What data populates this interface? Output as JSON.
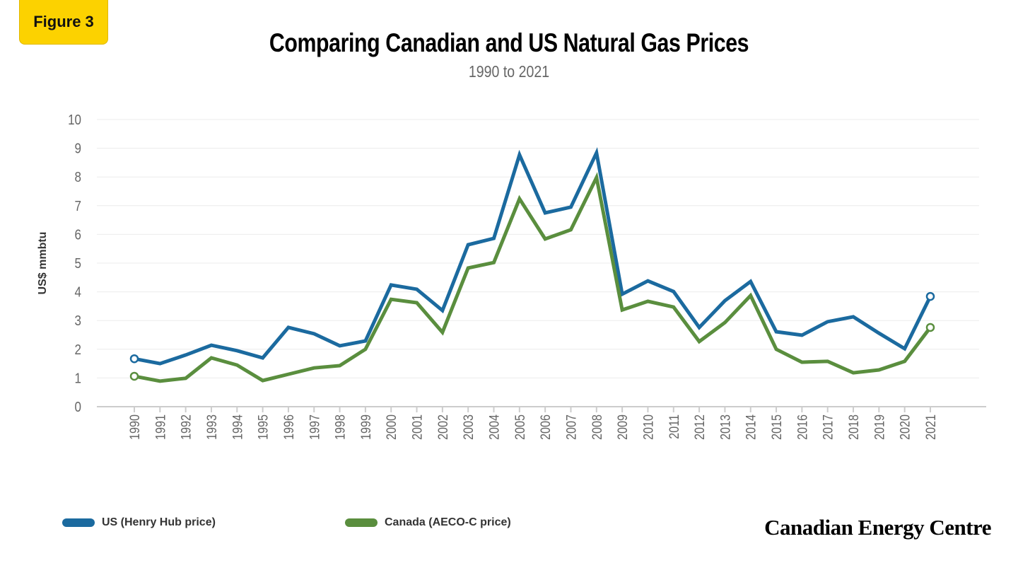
{
  "badge": "Figure 3",
  "logo": "Canadian Energy Centre",
  "chart_data": {
    "type": "line",
    "title": "Comparing Canadian and US Natural Gas Prices",
    "subtitle": "1990 to 2021",
    "xlabel": "",
    "ylabel": "US$ mmbtu",
    "ylim": [
      0,
      10
    ],
    "yticks": [
      "0",
      "1",
      "2",
      "3",
      "4",
      "5",
      "6",
      "7",
      "8",
      "9",
      "10"
    ],
    "grid": true,
    "legend_placement": "bottom-left",
    "x": [
      "1990",
      "1991",
      "1992",
      "1993",
      "1994",
      "1995",
      "1996",
      "1997",
      "1998",
      "1999",
      "2000",
      "2001",
      "2002",
      "2003",
      "2004",
      "2005",
      "2006",
      "2007",
      "2008",
      "2009",
      "2010",
      "2011",
      "2012",
      "2013",
      "2014",
      "2015",
      "2016",
      "2017",
      "2018",
      "2019",
      "2020",
      "2021"
    ],
    "series": [
      {
        "name": "US (Henry Hub price)",
        "color": "#1b6a9f",
        "values": [
          1.67,
          1.5,
          1.8,
          2.14,
          1.95,
          1.7,
          2.76,
          2.54,
          2.12,
          2.29,
          4.24,
          4.09,
          3.35,
          5.64,
          5.86,
          8.77,
          6.75,
          6.95,
          8.84,
          3.92,
          4.38,
          4.01,
          2.76,
          3.69,
          4.36,
          2.61,
          2.49,
          2.96,
          3.13,
          2.56,
          2.02,
          3.84
        ]
      },
      {
        "name": "Canada (AECO-C price)",
        "color": "#5a8e3e",
        "values": [
          1.06,
          0.89,
          0.99,
          1.7,
          1.45,
          0.91,
          1.13,
          1.35,
          1.43,
          2.0,
          3.74,
          3.62,
          2.59,
          4.83,
          5.02,
          7.24,
          5.84,
          6.16,
          7.98,
          3.37,
          3.67,
          3.47,
          2.27,
          2.93,
          3.87,
          2.0,
          1.55,
          1.58,
          1.18,
          1.28,
          1.58,
          2.76
        ]
      }
    ]
  }
}
